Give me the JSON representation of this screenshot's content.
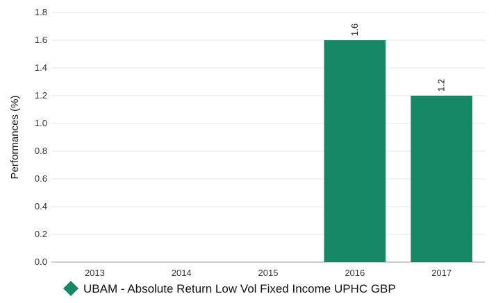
{
  "chart_data": {
    "type": "bar",
    "categories": [
      "2013",
      "2014",
      "2015",
      "2016",
      "2017"
    ],
    "series": [
      {
        "name": "UBAM - Absolute Return Low Vol Fixed Income UPHC GBP",
        "values": [
          null,
          null,
          null,
          1.6,
          1.2
        ],
        "color": "#168866"
      }
    ],
    "data_labels": [
      "",
      "",
      "",
      "1.6",
      "1.2"
    ],
    "ylabel": "Performances (%)",
    "ylim": [
      0,
      1.8
    ],
    "yticks": [
      "0.0",
      "0.2",
      "0.4",
      "0.6",
      "0.8",
      "1.0",
      "1.2",
      "1.4",
      "1.6",
      "1.8"
    ],
    "grid": true,
    "legend_position": "bottom-center"
  }
}
